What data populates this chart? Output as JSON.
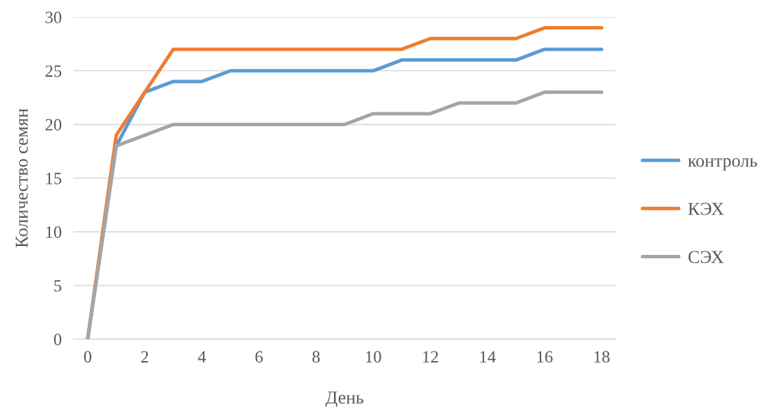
{
  "chart_data": {
    "type": "line",
    "xlabel": "День",
    "ylabel": "Количество семян",
    "x": [
      0,
      1,
      2,
      3,
      4,
      5,
      6,
      7,
      8,
      9,
      10,
      11,
      12,
      13,
      14,
      15,
      16,
      17,
      18
    ],
    "series": [
      {
        "name": "контроль",
        "color": "#5b9bd5",
        "values": [
          0,
          18,
          23,
          24,
          24,
          25,
          25,
          25,
          25,
          25,
          25,
          26,
          26,
          26,
          26,
          26,
          27,
          27,
          27
        ]
      },
      {
        "name": "КЭХ",
        "color": "#ed7d31",
        "values": [
          0,
          19,
          23,
          27,
          27,
          27,
          27,
          27,
          27,
          27,
          27,
          27,
          28,
          28,
          28,
          28,
          29,
          29,
          29
        ]
      },
      {
        "name": "СЭХ",
        "color": "#a5a5a5",
        "values": [
          0,
          18,
          19,
          20,
          20,
          20,
          20,
          20,
          20,
          20,
          21,
          21,
          21,
          22,
          22,
          22,
          23,
          23,
          23
        ]
      }
    ],
    "xlim": [
      -0.5,
      18.5
    ],
    "xticks": [
      0,
      2,
      4,
      6,
      8,
      10,
      12,
      14,
      16,
      18
    ],
    "ylim": [
      0,
      30
    ],
    "yticks": [
      0,
      5,
      10,
      15,
      20,
      25,
      30
    ],
    "grid": "y",
    "legend": "right"
  }
}
